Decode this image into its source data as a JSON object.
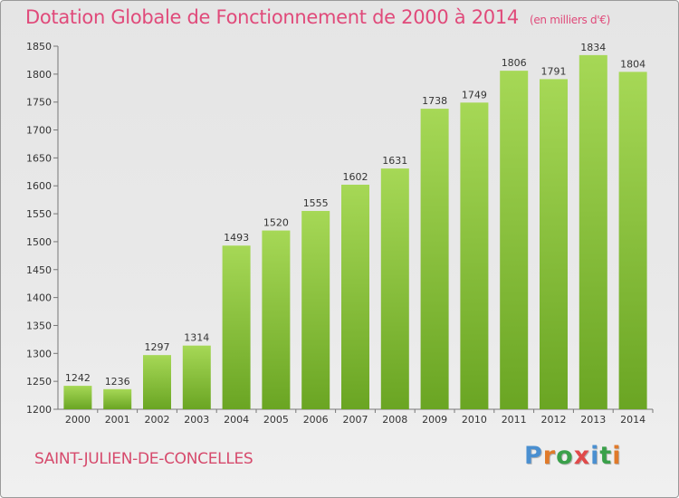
{
  "header": {
    "title": "Dotation Globale de Fonctionnement de 2000 à 2014",
    "subtitle": "(en milliers d'€)"
  },
  "footer": {
    "commune": "SAINT-JULIEN-DE-CONCELLES",
    "logo": "Proxiti"
  },
  "colors": {
    "title": "#e04a7a",
    "bar_light": "#a6d856",
    "bar_dark": "#6aa523",
    "logo": [
      "#4a8fd0",
      "#e07a2a",
      "#3aa04a",
      "#e04a4a",
      "#4a8fd0",
      "#3aa04a",
      "#e07a2a"
    ]
  },
  "chart_data": {
    "type": "bar",
    "categories": [
      "2000",
      "2001",
      "2002",
      "2003",
      "2004",
      "2005",
      "2006",
      "2007",
      "2008",
      "2009",
      "2010",
      "2011",
      "2012",
      "2013",
      "2014"
    ],
    "values": [
      1242,
      1236,
      1297,
      1314,
      1493,
      1520,
      1555,
      1602,
      1631,
      1738,
      1749,
      1806,
      1791,
      1834,
      1804
    ],
    "title": "Dotation Globale de Fonctionnement de 2000 à 2014",
    "subtitle": "(en milliers d'€)",
    "xlabel": "",
    "ylabel": "",
    "ylim": [
      1200,
      1850
    ],
    "yticks": [
      1200,
      1250,
      1300,
      1350,
      1400,
      1450,
      1500,
      1550,
      1600,
      1650,
      1700,
      1750,
      1800,
      1850
    ],
    "grid": false,
    "legend": "none"
  }
}
